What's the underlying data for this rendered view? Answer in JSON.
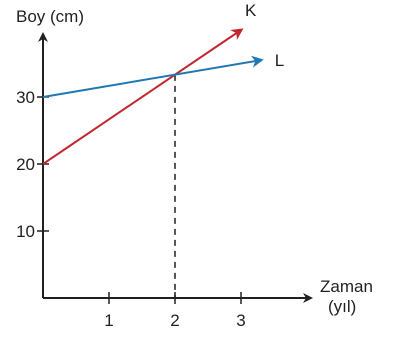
{
  "chart_data": {
    "type": "line",
    "ylabel": "Boy (cm)",
    "xlabel": "Zaman",
    "xlabel_unit": "(yıl)",
    "x_ticks": [
      1,
      2,
      3
    ],
    "y_ticks": [
      10,
      20,
      30
    ],
    "xlim": [
      0,
      3.9
    ],
    "ylim": [
      0,
      40
    ],
    "grid": false,
    "series": [
      {
        "name": "K",
        "color": "#c1272d",
        "x": [
          0,
          3
        ],
        "y": [
          20,
          40
        ]
      },
      {
        "name": "L",
        "color": "#1f78b4",
        "x": [
          0,
          3.3
        ],
        "y": [
          30,
          35.5
        ]
      }
    ],
    "guide": {
      "x": 2,
      "y": 33.3,
      "style": "dashed"
    }
  }
}
